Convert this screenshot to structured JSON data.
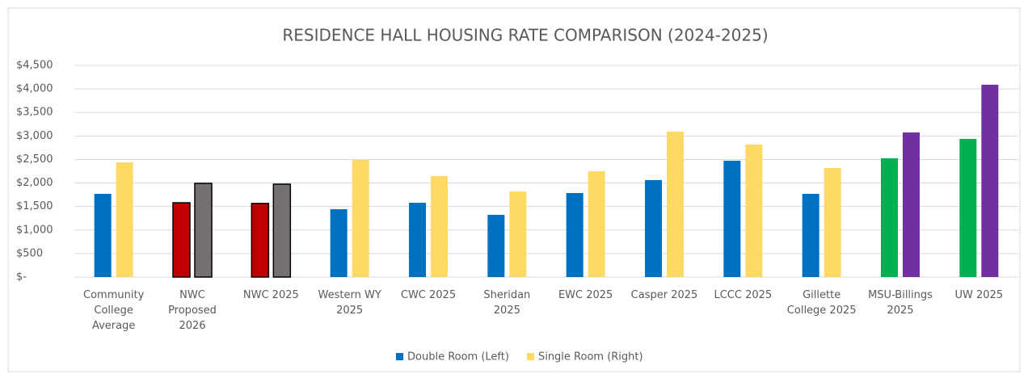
{
  "chart_data": {
    "type": "bar",
    "title": "RESIDENCE HALL HOUSING RATE COMPARISON (2024-2025)",
    "categories": [
      "Community College Average",
      "NWC Proposed 2026",
      "NWC 2025",
      "Western WY 2025",
      "CWC 2025",
      "Sheridan 2025",
      "EWC 2025",
      "Casper 2025",
      "LCCC 2025",
      "Gillette College 2025",
      "MSU-Billings 2025",
      "UW 2025"
    ],
    "series": [
      {
        "name": "Double Room (Left)",
        "color": "#0070c0",
        "colors": [
          "#0070c0",
          "#c00000",
          "#c00000",
          "#0070c0",
          "#0070c0",
          "#0070c0",
          "#0070c0",
          "#0070c0",
          "#0070c0",
          "#0070c0",
          "#00b050",
          "#00b050"
        ],
        "edgecolors": [
          null,
          "#000000",
          "#000000",
          null,
          null,
          null,
          null,
          null,
          null,
          null,
          null,
          null
        ],
        "values": [
          1770,
          1580,
          1565,
          1443,
          1580,
          1323,
          1787,
          2062,
          2474,
          1770,
          2526,
          2938
        ]
      },
      {
        "name": "Single Room (Right)",
        "color": "#ffd966",
        "colors": [
          "#ffd966",
          "#767171",
          "#767171",
          "#ffd966",
          "#ffd966",
          "#ffd966",
          "#ffd966",
          "#ffd966",
          "#ffd966",
          "#ffd966",
          "#7030a0",
          "#7030a0"
        ],
        "edgecolors": [
          null,
          "#000000",
          "#000000",
          null,
          null,
          null,
          null,
          null,
          null,
          null,
          null,
          null
        ],
        "values": [
          2440,
          1993,
          1975,
          2490,
          2148,
          1821,
          2250,
          3093,
          2818,
          2320,
          3076,
          4090
        ]
      }
    ],
    "ylim": [
      0,
      4500
    ],
    "yticks": [
      {
        "value": 0,
        "label": "$-"
      },
      {
        "value": 500,
        "label": "$500"
      },
      {
        "value": 1000,
        "label": "$1,000"
      },
      {
        "value": 1500,
        "label": "$1,500"
      },
      {
        "value": 2000,
        "label": "$2,000"
      },
      {
        "value": 2500,
        "label": "$2,500"
      },
      {
        "value": 3000,
        "label": "$3,000"
      },
      {
        "value": 3500,
        "label": "$3,500"
      },
      {
        "value": 4000,
        "label": "$4,000"
      },
      {
        "value": 4500,
        "label": "$4,500"
      }
    ],
    "grid": true,
    "legend": "bottom"
  }
}
